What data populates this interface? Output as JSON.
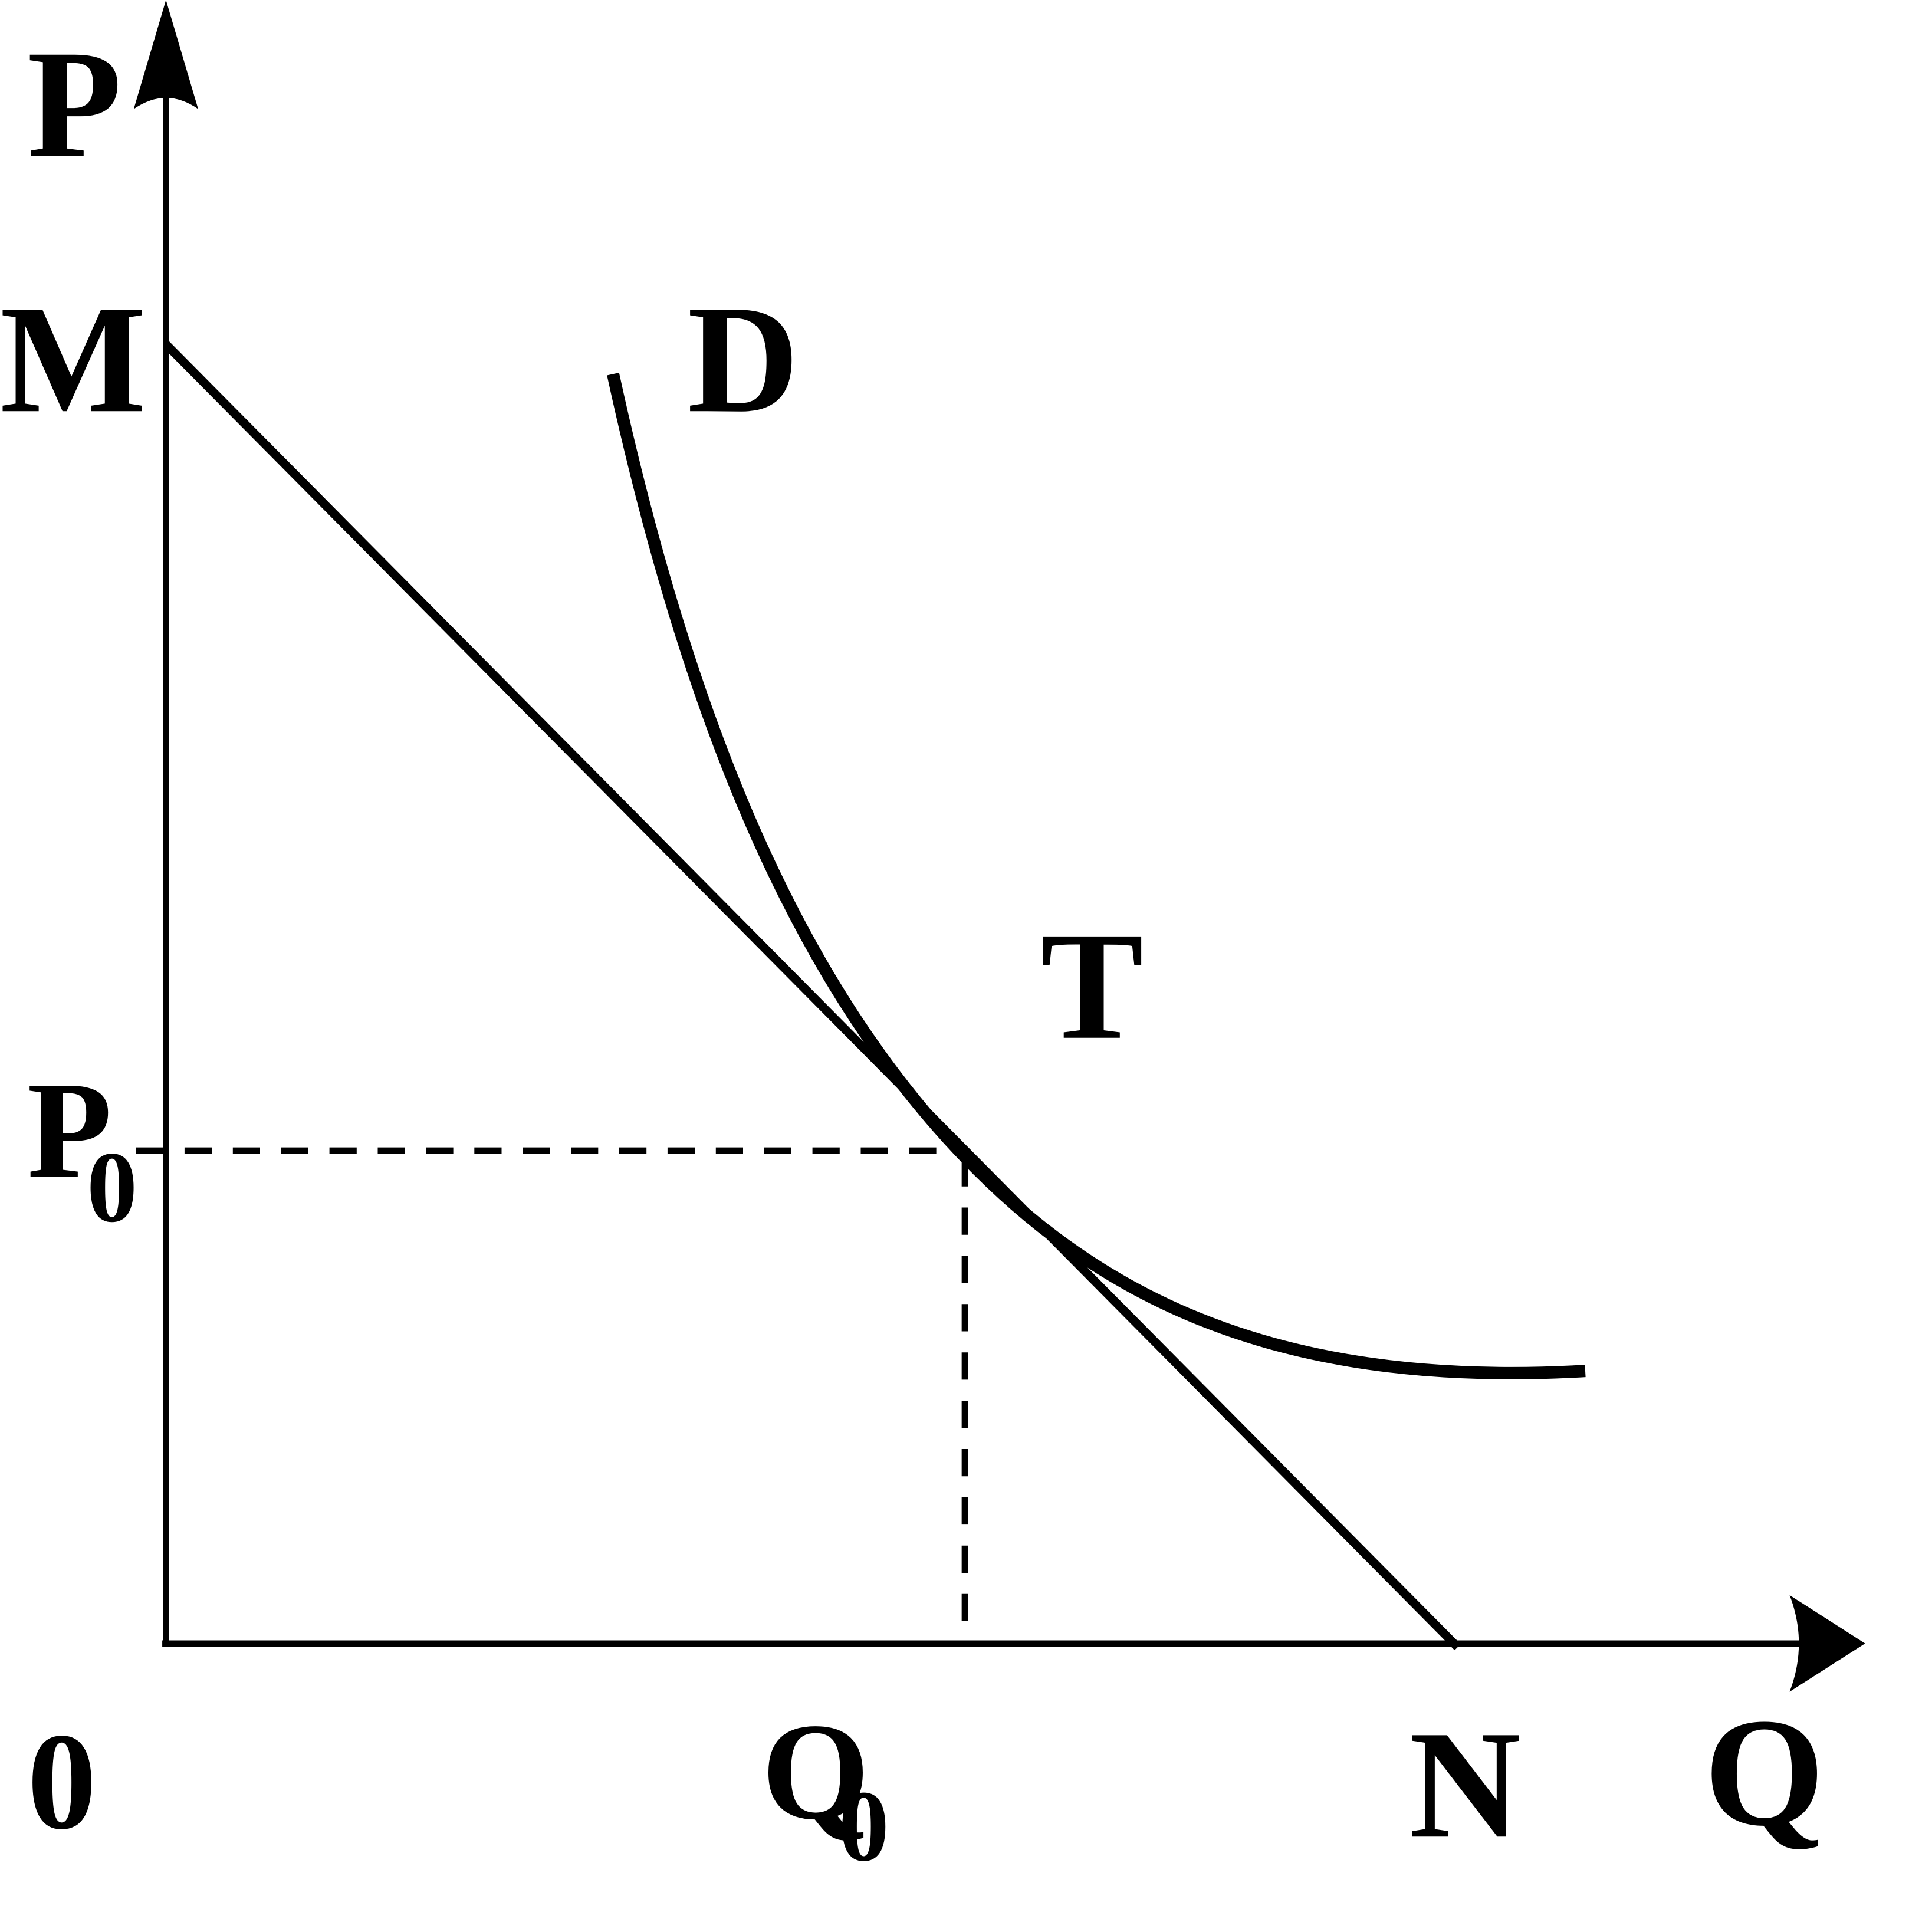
{
  "labels": {
    "p_axis": "P",
    "m": "M",
    "d": "D",
    "t": "T",
    "p0": "P",
    "p0_sub": "0",
    "origin": "0",
    "q0": "Q",
    "q0_sub": "0",
    "n": "N",
    "q_axis": "Q"
  }
}
